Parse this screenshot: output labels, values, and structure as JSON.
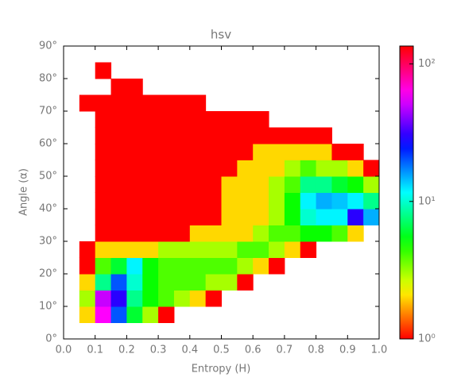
{
  "chart_data": {
    "type": "hist2d",
    "title": "hsv",
    "xlabel": "Entropy (H)",
    "ylabel": "Angle (α)",
    "xbins": [
      0,
      0.05,
      0.1,
      0.15,
      0.2,
      0.25,
      0.3,
      0.35,
      0.4,
      0.45,
      0.5,
      0.55,
      0.6,
      0.65,
      0.7,
      0.75,
      0.8,
      0.85,
      0.9,
      0.95,
      1.0
    ],
    "ybins": [
      0,
      5,
      10,
      15,
      20,
      25,
      30,
      35,
      40,
      45,
      50,
      55,
      60,
      65,
      70,
      75,
      80,
      85,
      90
    ],
    "counts": [
      [
        0,
        0,
        0,
        0,
        0,
        0,
        0,
        0,
        0,
        0,
        0,
        0,
        0,
        0,
        0,
        0,
        0,
        0,
        0,
        0
      ],
      [
        0,
        2,
        60,
        20,
        6,
        3,
        1,
        0,
        0,
        0,
        0,
        0,
        0,
        0,
        0,
        0,
        0,
        0,
        0,
        0
      ],
      [
        0,
        3,
        50,
        30,
        8,
        5,
        4,
        3,
        2,
        1,
        0,
        0,
        0,
        0,
        0,
        0,
        0,
        0,
        0,
        0
      ],
      [
        0,
        2,
        8,
        20,
        10,
        5,
        4,
        4,
        4,
        3,
        3,
        1,
        0,
        0,
        0,
        0,
        0,
        0,
        0,
        0
      ],
      [
        0,
        1,
        4,
        6,
        12,
        5,
        4,
        4,
        4,
        4,
        4,
        3,
        2,
        1,
        0,
        0,
        0,
        0,
        0,
        0
      ],
      [
        0,
        1,
        2,
        2,
        2,
        2,
        3,
        3,
        3,
        3,
        3,
        4,
        4,
        3,
        2,
        1,
        0,
        0,
        0,
        0
      ],
      [
        0,
        0,
        1,
        1,
        1,
        1,
        1,
        1,
        2,
        2,
        2,
        2,
        3,
        4,
        4,
        5,
        5,
        4,
        2,
        0
      ],
      [
        0,
        0,
        1,
        1,
        1,
        1,
        1,
        1,
        1,
        1,
        2,
        2,
        2,
        3,
        5,
        10,
        12,
        12,
        30,
        15
      ],
      [
        0,
        0,
        1,
        1,
        1,
        1,
        1,
        1,
        1,
        1,
        2,
        2,
        2,
        3,
        5,
        12,
        15,
        14,
        12,
        8
      ],
      [
        0,
        0,
        1,
        1,
        1,
        1,
        1,
        1,
        1,
        1,
        2,
        2,
        2,
        3,
        4,
        8,
        8,
        6,
        5,
        3
      ],
      [
        0,
        0,
        1,
        1,
        1,
        1,
        1,
        1,
        1,
        1,
        1,
        2,
        2,
        2,
        3,
        4,
        3,
        3,
        2,
        1
      ],
      [
        0,
        0,
        1,
        1,
        1,
        1,
        1,
        1,
        1,
        1,
        1,
        1,
        2,
        2,
        2,
        2,
        2,
        1,
        1,
        0
      ],
      [
        0,
        0,
        1,
        1,
        1,
        1,
        1,
        1,
        1,
        1,
        1,
        1,
        1,
        1,
        1,
        1,
        1,
        0,
        0,
        0
      ],
      [
        0,
        0,
        1,
        1,
        1,
        1,
        1,
        1,
        1,
        1,
        1,
        1,
        1,
        0,
        0,
        0,
        0,
        0,
        0,
        0
      ],
      [
        0,
        1,
        1,
        1,
        1,
        1,
        1,
        1,
        1,
        0,
        0,
        0,
        0,
        0,
        0,
        0,
        0,
        0,
        0,
        0
      ],
      [
        0,
        0,
        0,
        1,
        1,
        0,
        0,
        0,
        0,
        0,
        0,
        0,
        0,
        0,
        0,
        0,
        0,
        0,
        0,
        0
      ],
      [
        0,
        0,
        1,
        0,
        0,
        0,
        0,
        0,
        0,
        0,
        0,
        0,
        0,
        0,
        0,
        0,
        0,
        0,
        0,
        0
      ],
      [
        0,
        0,
        0,
        0,
        0,
        0,
        0,
        0,
        0,
        0,
        0,
        0,
        0,
        0,
        0,
        0,
        0,
        0,
        0,
        0
      ]
    ],
    "colormap": "hsv",
    "log_color": true,
    "xlim": [
      0,
      1
    ],
    "ylim": [
      0,
      90
    ],
    "xticks": [
      {
        "value": 0,
        "label": "0.0"
      },
      {
        "value": 0.1,
        "label": "0.1"
      },
      {
        "value": 0.2,
        "label": "0.2"
      },
      {
        "value": 0.3,
        "label": "0.3"
      },
      {
        "value": 0.4,
        "label": "0.4"
      },
      {
        "value": 0.5,
        "label": "0.5"
      },
      {
        "value": 0.6,
        "label": "0.6"
      },
      {
        "value": 0.7,
        "label": "0.7"
      },
      {
        "value": 0.8,
        "label": "0.8"
      },
      {
        "value": 0.9,
        "label": "0.9"
      },
      {
        "value": 1,
        "label": "1.0"
      }
    ],
    "yticks": [
      {
        "value": 0,
        "label": "0°"
      },
      {
        "value": 10,
        "label": "10°"
      },
      {
        "value": 20,
        "label": "20°"
      },
      {
        "value": 30,
        "label": "30°"
      },
      {
        "value": 40,
        "label": "40°"
      },
      {
        "value": 50,
        "label": "50°"
      },
      {
        "value": 60,
        "label": "60°"
      },
      {
        "value": 70,
        "label": "70°"
      },
      {
        "value": 80,
        "label": "80°"
      },
      {
        "value": 90,
        "label": "90°"
      }
    ],
    "clim": [
      1,
      135
    ],
    "cticks": [
      {
        "value": 1,
        "label": "10⁰"
      },
      {
        "value": 10,
        "label": "10¹"
      },
      {
        "value": 100,
        "label": "10²"
      }
    ]
  }
}
